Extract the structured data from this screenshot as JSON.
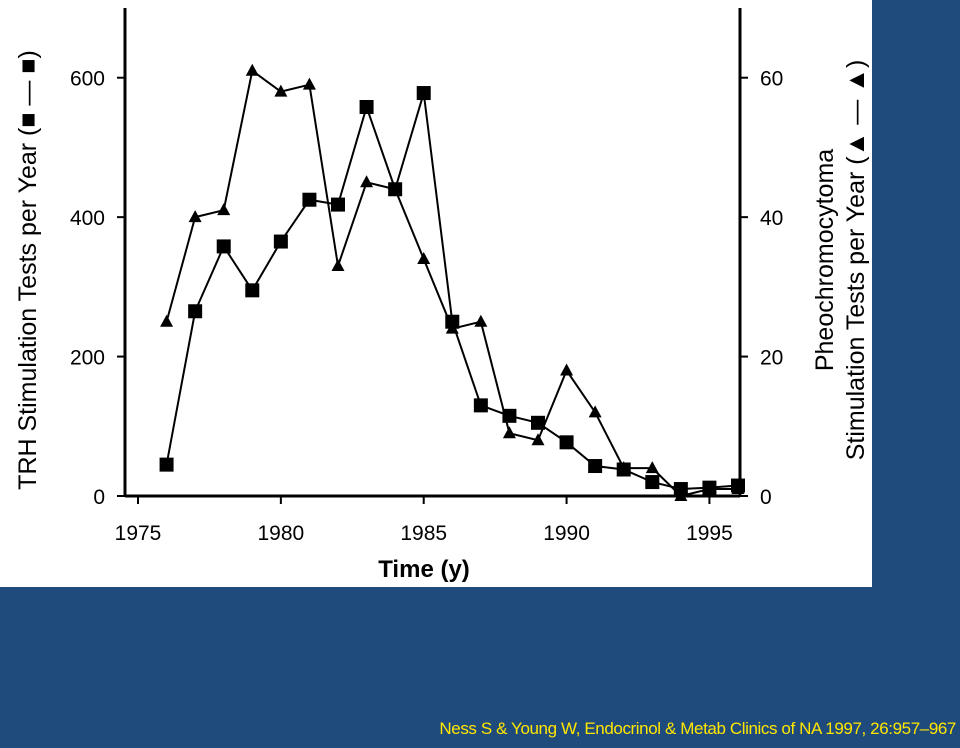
{
  "citation": "Ness S & Young W,  Endocrinol & Metab Clinics of NA  1997, 26:957–967",
  "colors": {
    "background": "#1f4a7c",
    "figure": "#ffffff",
    "citation": "#ffe600",
    "ink": "#000000"
  },
  "chart_data": {
    "type": "line",
    "xlabel": "Time (y)",
    "ylabel_left": "TRH Stimulation Tests per Year (■ — ■)",
    "ylabel_right_line1": "Pheochromocytoma",
    "ylabel_right_line2": "Stimulation Tests per Year (▲ — ▲)",
    "xlim": [
      1975,
      1996
    ],
    "x_ticks": [
      1975,
      1980,
      1985,
      1990,
      1995
    ],
    "x_tick_labels": [
      "1975",
      "1980",
      "1985",
      "1990",
      "1995"
    ],
    "ylim_left": [
      0,
      700
    ],
    "y_ticks_left": [
      0,
      200,
      400,
      600
    ],
    "y_tick_labels_left": [
      "0",
      "200",
      "400",
      "600"
    ],
    "ylim_right": [
      0,
      70
    ],
    "y_ticks_right": [
      0,
      20,
      40,
      60
    ],
    "y_tick_labels_right": [
      "0",
      "20",
      "40",
      "60"
    ],
    "grid": false,
    "series": [
      {
        "marker": "square",
        "axis": "left",
        "x": [
          1976,
          1977,
          1978,
          1979,
          1980,
          1981,
          1982,
          1983,
          1984,
          1985,
          1986,
          1987,
          1988,
          1989,
          1990,
          1991,
          1992,
          1993,
          1994,
          1995,
          1996
        ],
        "values": [
          45,
          265,
          358,
          295,
          365,
          425,
          418,
          558,
          440,
          578,
          250,
          130,
          115,
          105,
          77,
          43,
          38,
          20,
          10,
          12,
          15
        ]
      },
      {
        "marker": "triangle",
        "axis": "right",
        "x": [
          1976,
          1977,
          1978,
          1979,
          1980,
          1981,
          1982,
          1983,
          1984,
          1985,
          1986,
          1987,
          1988,
          1989,
          1990,
          1991,
          1992,
          1993,
          1994,
          1995,
          1996
        ],
        "values": [
          25,
          40,
          41,
          61,
          58,
          59,
          33,
          45,
          44,
          34,
          24,
          25,
          9,
          8,
          18,
          12,
          4,
          4,
          0,
          1,
          1
        ]
      }
    ]
  }
}
